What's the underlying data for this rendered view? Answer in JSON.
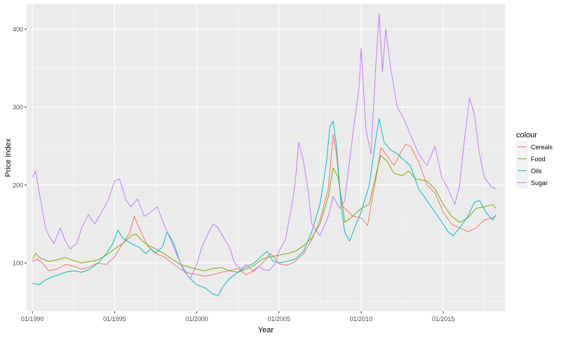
{
  "chart_data": {
    "type": "line",
    "title": "",
    "xlabel": "Year",
    "ylabel": "Price Index",
    "xlim": [
      1989.65,
      2018.75
    ],
    "ylim": [
      38,
      432
    ],
    "x_ticks": [
      {
        "value": 1990.0,
        "label": "01/1990"
      },
      {
        "value": 1995.0,
        "label": "01/1995"
      },
      {
        "value": 2000.0,
        "label": "01/2000"
      },
      {
        "value": 2005.0,
        "label": "01/2005"
      },
      {
        "value": 2010.0,
        "label": "01/2010"
      },
      {
        "value": 2015.0,
        "label": "01/2015"
      }
    ],
    "y_ticks": [
      100,
      200,
      300,
      400
    ],
    "grid": true,
    "legend": {
      "title": "colour",
      "position": "right"
    },
    "background": "#EBEBEB",
    "series": [
      {
        "name": "Cereals",
        "color": "#F8766D",
        "points": [
          [
            1990.0,
            102
          ],
          [
            1990.3,
            105
          ],
          [
            1990.6,
            100
          ],
          [
            1991.0,
            90
          ],
          [
            1991.5,
            92
          ],
          [
            1992.0,
            98
          ],
          [
            1992.5,
            96
          ],
          [
            1993.0,
            92
          ],
          [
            1993.5,
            95
          ],
          [
            1994.0,
            100
          ],
          [
            1994.5,
            98
          ],
          [
            1995.0,
            108
          ],
          [
            1995.5,
            125
          ],
          [
            1995.9,
            138
          ],
          [
            1996.2,
            160
          ],
          [
            1996.5,
            145
          ],
          [
            1997.0,
            122
          ],
          [
            1997.5,
            112
          ],
          [
            1998.0,
            108
          ],
          [
            1998.5,
            100
          ],
          [
            1999.0,
            92
          ],
          [
            1999.5,
            87
          ],
          [
            2000.0,
            85
          ],
          [
            2000.5,
            83
          ],
          [
            2001.0,
            85
          ],
          [
            2001.5,
            88
          ],
          [
            2002.0,
            90
          ],
          [
            2002.5,
            93
          ],
          [
            2003.0,
            85
          ],
          [
            2003.5,
            90
          ],
          [
            2004.0,
            100
          ],
          [
            2004.5,
            112
          ],
          [
            2004.8,
            105
          ],
          [
            2005.0,
            99
          ],
          [
            2005.5,
            97
          ],
          [
            2006.0,
            102
          ],
          [
            2006.5,
            112
          ],
          [
            2007.0,
            130
          ],
          [
            2007.5,
            155
          ],
          [
            2008.0,
            195
          ],
          [
            2008.3,
            265
          ],
          [
            2008.5,
            240
          ],
          [
            2008.8,
            175
          ],
          [
            2009.0,
            170
          ],
          [
            2009.5,
            160
          ],
          [
            2010.0,
            158
          ],
          [
            2010.4,
            148
          ],
          [
            2010.7,
            185
          ],
          [
            2011.0,
            220
          ],
          [
            2011.2,
            248
          ],
          [
            2011.5,
            240
          ],
          [
            2012.0,
            225
          ],
          [
            2012.5,
            245
          ],
          [
            2012.7,
            252
          ],
          [
            2013.0,
            250
          ],
          [
            2013.5,
            230
          ],
          [
            2014.0,
            200
          ],
          [
            2014.5,
            190
          ],
          [
            2015.0,
            165
          ],
          [
            2015.5,
            150
          ],
          [
            2016.0,
            145
          ],
          [
            2016.5,
            140
          ],
          [
            2017.0,
            145
          ],
          [
            2017.5,
            155
          ],
          [
            2018.0,
            158
          ],
          [
            2018.2,
            160
          ]
        ]
      },
      {
        "name": "Food",
        "color": "#7CAE00",
        "points": [
          [
            1990.0,
            105
          ],
          [
            1990.2,
            112
          ],
          [
            1990.5,
            106
          ],
          [
            1991.0,
            102
          ],
          [
            1991.5,
            104
          ],
          [
            1992.0,
            107
          ],
          [
            1992.5,
            103
          ],
          [
            1993.0,
            100
          ],
          [
            1993.5,
            102
          ],
          [
            1994.0,
            104
          ],
          [
            1994.5,
            110
          ],
          [
            1995.0,
            118
          ],
          [
            1995.5,
            125
          ],
          [
            1996.0,
            135
          ],
          [
            1996.3,
            137
          ],
          [
            1996.7,
            128
          ],
          [
            1997.0,
            123
          ],
          [
            1997.5,
            118
          ],
          [
            1998.0,
            112
          ],
          [
            1998.5,
            105
          ],
          [
            1999.0,
            98
          ],
          [
            1999.5,
            95
          ],
          [
            2000.0,
            92
          ],
          [
            2000.5,
            90
          ],
          [
            2001.0,
            93
          ],
          [
            2001.5,
            94
          ],
          [
            2002.0,
            90
          ],
          [
            2002.5,
            88
          ],
          [
            2003.0,
            92
          ],
          [
            2003.5,
            97
          ],
          [
            2004.0,
            105
          ],
          [
            2004.5,
            108
          ],
          [
            2005.0,
            110
          ],
          [
            2005.5,
            112
          ],
          [
            2006.0,
            115
          ],
          [
            2006.5,
            122
          ],
          [
            2007.0,
            132
          ],
          [
            2007.5,
            150
          ],
          [
            2008.0,
            185
          ],
          [
            2008.3,
            222
          ],
          [
            2008.6,
            210
          ],
          [
            2008.9,
            170
          ],
          [
            2009.0,
            152
          ],
          [
            2009.5,
            160
          ],
          [
            2010.0,
            170
          ],
          [
            2010.5,
            175
          ],
          [
            2011.0,
            222
          ],
          [
            2011.2,
            238
          ],
          [
            2011.6,
            230
          ],
          [
            2012.0,
            215
          ],
          [
            2012.5,
            212
          ],
          [
            2012.9,
            218
          ],
          [
            2013.3,
            208
          ],
          [
            2014.0,
            205
          ],
          [
            2014.5,
            195
          ],
          [
            2015.0,
            175
          ],
          [
            2015.5,
            160
          ],
          [
            2016.0,
            152
          ],
          [
            2016.5,
            158
          ],
          [
            2017.0,
            170
          ],
          [
            2017.5,
            172
          ],
          [
            2018.0,
            175
          ],
          [
            2018.2,
            170
          ]
        ]
      },
      {
        "name": "Oils",
        "color": "#00BFC4",
        "points": [
          [
            1990.0,
            74
          ],
          [
            1990.4,
            72
          ],
          [
            1990.8,
            78
          ],
          [
            1991.2,
            82
          ],
          [
            1991.6,
            85
          ],
          [
            1992.0,
            88
          ],
          [
            1992.5,
            90
          ],
          [
            1993.0,
            88
          ],
          [
            1993.5,
            92
          ],
          [
            1994.0,
            100
          ],
          [
            1994.5,
            112
          ],
          [
            1994.9,
            125
          ],
          [
            1995.2,
            142
          ],
          [
            1995.5,
            132
          ],
          [
            1996.0,
            125
          ],
          [
            1996.5,
            120
          ],
          [
            1996.9,
            112
          ],
          [
            1997.2,
            118
          ],
          [
            1997.5,
            113
          ],
          [
            1997.9,
            120
          ],
          [
            1998.2,
            140
          ],
          [
            1998.6,
            125
          ],
          [
            1999.0,
            100
          ],
          [
            1999.5,
            82
          ],
          [
            2000.0,
            72
          ],
          [
            2000.5,
            68
          ],
          [
            2001.0,
            60
          ],
          [
            2001.3,
            58
          ],
          [
            2001.6,
            70
          ],
          [
            2002.0,
            80
          ],
          [
            2002.5,
            88
          ],
          [
            2003.0,
            95
          ],
          [
            2003.5,
            100
          ],
          [
            2004.0,
            110
          ],
          [
            2004.3,
            115
          ],
          [
            2004.6,
            103
          ],
          [
            2005.0,
            100
          ],
          [
            2005.5,
            102
          ],
          [
            2006.0,
            105
          ],
          [
            2006.5,
            115
          ],
          [
            2007.0,
            140
          ],
          [
            2007.5,
            175
          ],
          [
            2007.9,
            230
          ],
          [
            2008.1,
            275
          ],
          [
            2008.3,
            282
          ],
          [
            2008.5,
            250
          ],
          [
            2008.8,
            170
          ],
          [
            2009.0,
            140
          ],
          [
            2009.3,
            128
          ],
          [
            2009.7,
            150
          ],
          [
            2010.0,
            165
          ],
          [
            2010.5,
            200
          ],
          [
            2010.9,
            260
          ],
          [
            2011.1,
            285
          ],
          [
            2011.4,
            255
          ],
          [
            2011.8,
            245
          ],
          [
            2012.2,
            240
          ],
          [
            2012.6,
            232
          ],
          [
            2013.0,
            225
          ],
          [
            2013.5,
            195
          ],
          [
            2014.0,
            180
          ],
          [
            2014.5,
            165
          ],
          [
            2015.0,
            150
          ],
          [
            2015.3,
            140
          ],
          [
            2015.6,
            135
          ],
          [
            2016.0,
            145
          ],
          [
            2016.5,
            160
          ],
          [
            2016.9,
            178
          ],
          [
            2017.2,
            180
          ],
          [
            2017.6,
            165
          ],
          [
            2018.0,
            155
          ],
          [
            2018.2,
            162
          ]
        ]
      },
      {
        "name": "Sugar",
        "color": "#C77CFF",
        "points": [
          [
            1990.0,
            210
          ],
          [
            1990.2,
            218
          ],
          [
            1990.5,
            180
          ],
          [
            1990.8,
            145
          ],
          [
            1991.0,
            135
          ],
          [
            1991.3,
            125
          ],
          [
            1991.7,
            145
          ],
          [
            1992.0,
            128
          ],
          [
            1992.3,
            118
          ],
          [
            1992.7,
            125
          ],
          [
            1993.0,
            145
          ],
          [
            1993.4,
            162
          ],
          [
            1993.8,
            150
          ],
          [
            1994.2,
            165
          ],
          [
            1994.6,
            180
          ],
          [
            1995.0,
            205
          ],
          [
            1995.3,
            208
          ],
          [
            1995.7,
            180
          ],
          [
            1996.0,
            172
          ],
          [
            1996.4,
            182
          ],
          [
            1996.8,
            160
          ],
          [
            1997.2,
            165
          ],
          [
            1997.6,
            172
          ],
          [
            1998.0,
            150
          ],
          [
            1998.4,
            130
          ],
          [
            1998.8,
            110
          ],
          [
            1999.2,
            90
          ],
          [
            1999.6,
            80
          ],
          [
            2000.0,
            98
          ],
          [
            2000.3,
            120
          ],
          [
            2000.7,
            138
          ],
          [
            2001.0,
            150
          ],
          [
            2001.3,
            145
          ],
          [
            2001.7,
            130
          ],
          [
            2002.0,
            120
          ],
          [
            2002.3,
            100
          ],
          [
            2002.7,
            92
          ],
          [
            2003.0,
            98
          ],
          [
            2003.4,
            90
          ],
          [
            2003.8,
            96
          ],
          [
            2004.0,
            92
          ],
          [
            2004.4,
            90
          ],
          [
            2004.8,
            100
          ],
          [
            2005.0,
            115
          ],
          [
            2005.4,
            130
          ],
          [
            2005.8,
            175
          ],
          [
            2006.0,
            205
          ],
          [
            2006.2,
            255
          ],
          [
            2006.5,
            230
          ],
          [
            2006.8,
            190
          ],
          [
            2007.0,
            150
          ],
          [
            2007.5,
            135
          ],
          [
            2008.0,
            160
          ],
          [
            2008.3,
            185
          ],
          [
            2008.7,
            170
          ],
          [
            2009.0,
            180
          ],
          [
            2009.5,
            265
          ],
          [
            2009.9,
            330
          ],
          [
            2010.0,
            375
          ],
          [
            2010.3,
            270
          ],
          [
            2010.6,
            240
          ],
          [
            2010.9,
            355
          ],
          [
            2011.1,
            420
          ],
          [
            2011.3,
            345
          ],
          [
            2011.5,
            400
          ],
          [
            2011.8,
            350
          ],
          [
            2012.2,
            300
          ],
          [
            2012.6,
            285
          ],
          [
            2013.0,
            265
          ],
          [
            2013.5,
            240
          ],
          [
            2014.0,
            225
          ],
          [
            2014.5,
            250
          ],
          [
            2014.9,
            210
          ],
          [
            2015.3,
            195
          ],
          [
            2015.7,
            175
          ],
          [
            2016.0,
            200
          ],
          [
            2016.3,
            260
          ],
          [
            2016.6,
            312
          ],
          [
            2016.9,
            290
          ],
          [
            2017.2,
            240
          ],
          [
            2017.5,
            210
          ],
          [
            2017.9,
            198
          ],
          [
            2018.2,
            195
          ]
        ]
      }
    ]
  }
}
